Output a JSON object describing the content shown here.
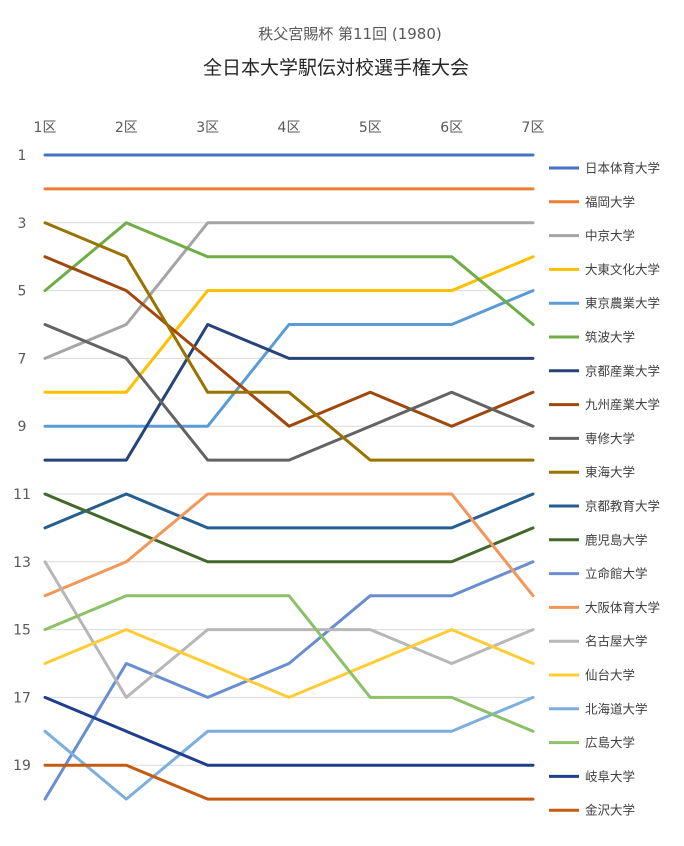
{
  "chart_data": {
    "type": "line",
    "subtitle": "秩父宮賜杯 第11回 (1980)",
    "title": "全日本大学駅伝対校選手権大会",
    "categories": [
      "1区",
      "2区",
      "3区",
      "4区",
      "5区",
      "6区",
      "7区"
    ],
    "y_tick_labels": [
      "1",
      "3",
      "5",
      "7",
      "9",
      "11",
      "13",
      "15",
      "17",
      "19"
    ],
    "y_ticks": [
      1,
      3,
      5,
      7,
      9,
      11,
      13,
      15,
      17,
      19
    ],
    "ylim": [
      1,
      20
    ],
    "y_reversed": true,
    "x_axis_position": "top",
    "grid": true,
    "legend": "right",
    "series": [
      {
        "name": "日本体育大学",
        "color": "#4472C4",
        "values": [
          1,
          1,
          1,
          1,
          1,
          1,
          1
        ]
      },
      {
        "name": "福岡大学",
        "color": "#ED7D31",
        "values": [
          2,
          2,
          2,
          2,
          2,
          2,
          2
        ]
      },
      {
        "name": "中京大学",
        "color": "#A5A5A5",
        "values": [
          7,
          6,
          3,
          3,
          3,
          3,
          3
        ]
      },
      {
        "name": "大東文化大学",
        "color": "#FFC000",
        "values": [
          8,
          8,
          5,
          5,
          5,
          5,
          4
        ]
      },
      {
        "name": "東京農業大学",
        "color": "#5B9BD5",
        "values": [
          9,
          9,
          9,
          6,
          6,
          6,
          5
        ]
      },
      {
        "name": "筑波大学",
        "color": "#70AD47",
        "values": [
          5,
          3,
          4,
          4,
          4,
          4,
          6
        ]
      },
      {
        "name": "京都産業大学",
        "color": "#264478",
        "values": [
          10,
          10,
          6,
          7,
          7,
          7,
          7
        ]
      },
      {
        "name": "九州産業大学",
        "color": "#9E480E",
        "values": [
          4,
          5,
          7,
          9,
          8,
          9,
          8
        ]
      },
      {
        "name": "専修大学",
        "color": "#636363",
        "values": [
          6,
          7,
          10,
          10,
          9,
          8,
          9
        ]
      },
      {
        "name": "東海大学",
        "color": "#997300",
        "values": [
          3,
          4,
          8,
          8,
          10,
          10,
          10
        ]
      },
      {
        "name": "京都教育大学",
        "color": "#255E91",
        "values": [
          12,
          11,
          12,
          12,
          12,
          12,
          11
        ]
      },
      {
        "name": "鹿児島大学",
        "color": "#43682B",
        "values": [
          11,
          12,
          13,
          13,
          13,
          13,
          12
        ]
      },
      {
        "name": "立命館大学",
        "color": "#698ED0",
        "values": [
          20,
          16,
          17,
          16,
          14,
          14,
          13
        ]
      },
      {
        "name": "大阪体育大学",
        "color": "#F1975A",
        "values": [
          14,
          13,
          11,
          11,
          11,
          11,
          14
        ]
      },
      {
        "name": "名古屋大学",
        "color": "#B7B7B7",
        "values": [
          13,
          17,
          15,
          15,
          15,
          16,
          15
        ]
      },
      {
        "name": "仙台大学",
        "color": "#FFCD33",
        "values": [
          16,
          15,
          16,
          17,
          16,
          15,
          16
        ]
      },
      {
        "name": "北海道大学",
        "color": "#7CAFDD",
        "values": [
          18,
          20,
          18,
          18,
          18,
          18,
          17
        ]
      },
      {
        "name": "広島大学",
        "color": "#8CC168",
        "values": [
          15,
          14,
          14,
          14,
          17,
          17,
          18
        ]
      },
      {
        "name": "岐阜大学",
        "color": "#1F3E8C",
        "values": [
          17,
          18,
          19,
          19,
          19,
          19,
          19
        ]
      },
      {
        "name": "金沢大学",
        "color": "#C55A11",
        "values": [
          19,
          19,
          20,
          20,
          20,
          20,
          20
        ]
      }
    ]
  }
}
